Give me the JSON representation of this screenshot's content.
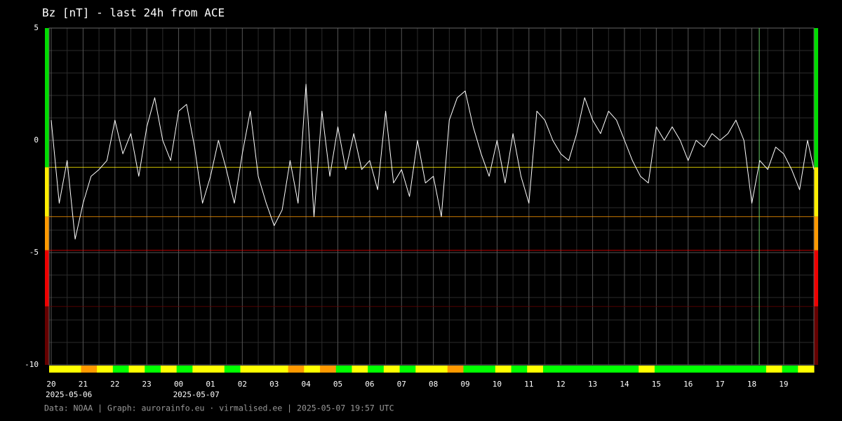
{
  "chart_data": {
    "type": "line",
    "title": "Bz [nT] - last 24h from ACE",
    "footer": "Data: NOAA | Graph: aurorainfo.eu · virmalised.ee | 2025-05-07 19:57 UTC",
    "x": [
      "2025-05-06 20:00",
      "2025-05-06 20:15",
      "2025-05-06 20:30",
      "2025-05-06 20:45",
      "2025-05-06 21:00",
      "2025-05-06 21:15",
      "2025-05-06 21:30",
      "2025-05-06 21:45",
      "2025-05-06 22:00",
      "2025-05-06 22:15",
      "2025-05-06 22:30",
      "2025-05-06 22:45",
      "2025-05-06 23:00",
      "2025-05-06 23:15",
      "2025-05-06 23:30",
      "2025-05-06 23:45",
      "2025-05-07 00:00",
      "2025-05-07 00:15",
      "2025-05-07 00:30",
      "2025-05-07 00:45",
      "2025-05-07 01:00",
      "2025-05-07 01:15",
      "2025-05-07 01:30",
      "2025-05-07 01:45",
      "2025-05-07 02:00",
      "2025-05-07 02:15",
      "2025-05-07 02:30",
      "2025-05-07 02:45",
      "2025-05-07 03:00",
      "2025-05-07 03:15",
      "2025-05-07 03:30",
      "2025-05-07 03:45",
      "2025-05-07 04:00",
      "2025-05-07 04:15",
      "2025-05-07 04:30",
      "2025-05-07 04:45",
      "2025-05-07 05:00",
      "2025-05-07 05:15",
      "2025-05-07 05:30",
      "2025-05-07 05:45",
      "2025-05-07 06:00",
      "2025-05-07 06:15",
      "2025-05-07 06:30",
      "2025-05-07 06:45",
      "2025-05-07 07:00",
      "2025-05-07 07:15",
      "2025-05-07 07:30",
      "2025-05-07 07:45",
      "2025-05-07 08:00",
      "2025-05-07 08:15",
      "2025-05-07 08:30",
      "2025-05-07 08:45",
      "2025-05-07 09:00",
      "2025-05-07 09:15",
      "2025-05-07 09:30",
      "2025-05-07 09:45",
      "2025-05-07 10:00",
      "2025-05-07 10:15",
      "2025-05-07 10:30",
      "2025-05-07 10:45",
      "2025-05-07 11:00",
      "2025-05-07 11:15",
      "2025-05-07 11:30",
      "2025-05-07 11:45",
      "2025-05-07 12:00",
      "2025-05-07 12:15",
      "2025-05-07 12:30",
      "2025-05-07 12:45",
      "2025-05-07 13:00",
      "2025-05-07 13:15",
      "2025-05-07 13:30",
      "2025-05-07 13:45",
      "2025-05-07 14:00",
      "2025-05-07 14:15",
      "2025-05-07 14:30",
      "2025-05-07 14:45",
      "2025-05-07 15:00",
      "2025-05-07 15:15",
      "2025-05-07 15:30",
      "2025-05-07 15:45",
      "2025-05-07 16:00",
      "2025-05-07 16:15",
      "2025-05-07 16:30",
      "2025-05-07 16:45",
      "2025-05-07 17:00",
      "2025-05-07 17:15",
      "2025-05-07 17:30",
      "2025-05-07 17:45",
      "2025-05-07 18:00",
      "2025-05-07 18:15",
      "2025-05-07 18:30",
      "2025-05-07 18:45",
      "2025-05-07 19:00",
      "2025-05-07 19:15",
      "2025-05-07 19:30",
      "2025-05-07 19:45",
      "2025-05-07 19:57"
    ],
    "values": [
      0.9,
      -2.8,
      -0.9,
      -4.4,
      -2.8,
      -1.6,
      -1.3,
      -0.9,
      0.9,
      -0.6,
      0.3,
      -1.6,
      0.6,
      1.9,
      0,
      -0.9,
      1.3,
      1.6,
      -0.3,
      -2.8,
      -1.6,
      0,
      -1.3,
      -2.8,
      -0.6,
      1.3,
      -1.6,
      -2.8,
      -3.8,
      -3.1,
      -0.9,
      -2.8,
      2.5,
      -3.4,
      1.3,
      -1.6,
      0.6,
      -1.3,
      0.3,
      -1.3,
      -0.9,
      -2.2,
      1.3,
      -1.9,
      -1.3,
      -2.5,
      0,
      -1.9,
      -1.6,
      -3.4,
      0.9,
      1.9,
      2.2,
      0.6,
      -0.6,
      -1.6,
      0,
      -1.9,
      0.3,
      -1.6,
      -2.8,
      1.3,
      0.9,
      0,
      -0.6,
      -0.9,
      0.3,
      1.9,
      0.9,
      0.3,
      1.3,
      0.9,
      0,
      -0.9,
      -1.6,
      -1.9,
      0.6,
      0,
      0.6,
      0,
      -0.9,
      0,
      -0.3,
      0.3,
      0,
      0.3,
      0.9,
      0,
      -2.8,
      -0.9,
      -1.3,
      -0.3,
      -0.6,
      -1.3,
      -2.2,
      0,
      -1.3
    ],
    "color": "#ffffff",
    "xlim": [
      "2025-05-06 19:56",
      "2025-05-07 19:57"
    ],
    "xticks": [
      {
        "value": "2025-05-06 20:00",
        "label": "20"
      },
      {
        "value": "2025-05-06 21:00",
        "label": "21"
      },
      {
        "value": "2025-05-06 22:00",
        "label": "22"
      },
      {
        "value": "2025-05-06 23:00",
        "label": "23"
      },
      {
        "value": "2025-05-07 00:00",
        "label": "00"
      },
      {
        "value": "2025-05-07 01:00",
        "label": "01"
      },
      {
        "value": "2025-05-07 02:00",
        "label": "02"
      },
      {
        "value": "2025-05-07 03:00",
        "label": "03"
      },
      {
        "value": "2025-05-07 04:00",
        "label": "04"
      },
      {
        "value": "2025-05-07 05:00",
        "label": "05"
      },
      {
        "value": "2025-05-07 06:00",
        "label": "06"
      },
      {
        "value": "2025-05-07 07:00",
        "label": "07"
      },
      {
        "value": "2025-05-07 08:00",
        "label": "08"
      },
      {
        "value": "2025-05-07 09:00",
        "label": "09"
      },
      {
        "value": "2025-05-07 10:00",
        "label": "10"
      },
      {
        "value": "2025-05-07 11:00",
        "label": "11"
      },
      {
        "value": "2025-05-07 12:00",
        "label": "12"
      },
      {
        "value": "2025-05-07 13:00",
        "label": "13"
      },
      {
        "value": "2025-05-07 14:00",
        "label": "14"
      },
      {
        "value": "2025-05-07 15:00",
        "label": "15"
      },
      {
        "value": "2025-05-07 16:00",
        "label": "16"
      },
      {
        "value": "2025-05-07 17:00",
        "label": "17"
      },
      {
        "value": "2025-05-07 18:00",
        "label": "18"
      },
      {
        "value": "2025-05-07 19:00",
        "label": "19"
      }
    ],
    "x_minor_ticks": [
      "2025-05-06 20:30",
      "2025-05-06 21:30",
      "2025-05-06 22:30",
      "2025-05-06 23:30",
      "2025-05-07 00:30",
      "2025-05-07 01:30",
      "2025-05-07 02:30",
      "2025-05-07 03:30",
      "2025-05-07 04:30",
      "2025-05-07 05:30",
      "2025-05-07 06:30",
      "2025-05-07 07:30",
      "2025-05-07 08:30",
      "2025-05-07 09:30",
      "2025-05-07 10:30",
      "2025-05-07 11:30",
      "2025-05-07 12:30",
      "2025-05-07 13:30",
      "2025-05-07 14:30",
      "2025-05-07 15:30",
      "2025-05-07 16:30",
      "2025-05-07 17:30",
      "2025-05-07 18:30",
      "2025-05-07 19:30"
    ],
    "date_labels": [
      {
        "value": "2025-05-06 20:00",
        "label": "2025-05-06"
      },
      {
        "value": "2025-05-07 00:00",
        "label": "2025-05-07"
      }
    ],
    "ylim": [
      -10,
      5
    ],
    "yticks": [
      5,
      0,
      -5,
      -10
    ],
    "y_minor_ticks": [
      4,
      3,
      2,
      1,
      -1,
      -2,
      -3,
      -4,
      -6,
      -7,
      -8,
      -9
    ],
    "grid": true,
    "top_band_color": "#00dd00",
    "thresholds": [
      {
        "value": -1.2,
        "color": "#ffee00"
      },
      {
        "value": -3.4,
        "color": "#ff9900"
      },
      {
        "value": -4.9,
        "color": "#ee0000"
      },
      {
        "value": -7.4,
        "color": "#660000"
      }
    ],
    "marker_x": "2025-05-07 18:14",
    "marker_color": "#66cc66",
    "status_strip": [
      "#ffff00",
      "#ffff00",
      "#ff9900",
      "#ffff00",
      "#00ff00",
      "#ffff00",
      "#00ff00",
      "#ffff00",
      "#00ff00",
      "#ffff00",
      "#ffff00",
      "#00ff00",
      "#ffff00",
      "#ffff00",
      "#ffff00",
      "#ff9900",
      "#ffff00",
      "#ff9900",
      "#00ff00",
      "#ffff00",
      "#00ff00",
      "#ffff00",
      "#00ff00",
      "#ffff00",
      "#ffff00",
      "#ff9900",
      "#00ff00",
      "#00ff00",
      "#ffff00",
      "#00ff00",
      "#ffff00",
      "#00ff00",
      "#00ff00",
      "#00ff00",
      "#00ff00",
      "#00ff00",
      "#00ff00",
      "#ffff00",
      "#00ff00",
      "#00ff00",
      "#00ff00",
      "#00ff00",
      "#00ff00",
      "#00ff00",
      "#00ff00",
      "#ffff00",
      "#00ff00",
      "#ffff00"
    ]
  }
}
